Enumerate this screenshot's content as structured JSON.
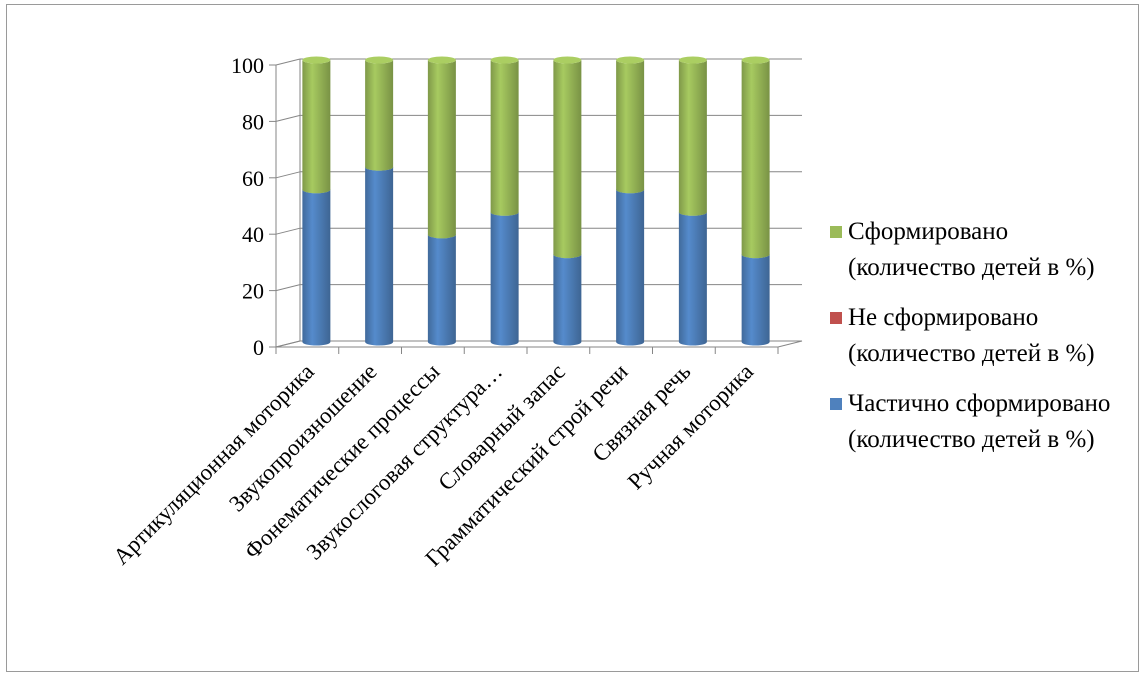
{
  "chart_data": {
    "type": "bar",
    "stacked": true,
    "three_d": true,
    "categories": [
      "Артикуляционная моторика",
      "Звукопроизношение",
      "Фонематические процессы",
      "Звукослоговая структура…",
      "Словарный запас",
      "Грамматический строй речи",
      "Связная речь",
      "Ручная моторика"
    ],
    "series": [
      {
        "name": "Частично сформировано (количество детей в %)",
        "color": "#4f81bd",
        "values": [
          54,
          62,
          38,
          46,
          31,
          54,
          46,
          31
        ]
      },
      {
        "name": "Не сформировано (количество детей в %)",
        "color": "#c0504d",
        "values": [
          0,
          0,
          0,
          0,
          0,
          0,
          0,
          0
        ]
      },
      {
        "name": "Сформировано (количество детей в %)",
        "color": "#9bbb59",
        "values": [
          46,
          38,
          62,
          54,
          69,
          46,
          54,
          69
        ]
      }
    ],
    "y_ticks": [
      "0",
      "20",
      "40",
      "60",
      "80",
      "100"
    ],
    "ylim": [
      0,
      100
    ],
    "grid": true,
    "legend_position": "right",
    "legend_order": [
      2,
      1,
      0
    ],
    "title": "",
    "xlabel": "",
    "ylabel": ""
  }
}
